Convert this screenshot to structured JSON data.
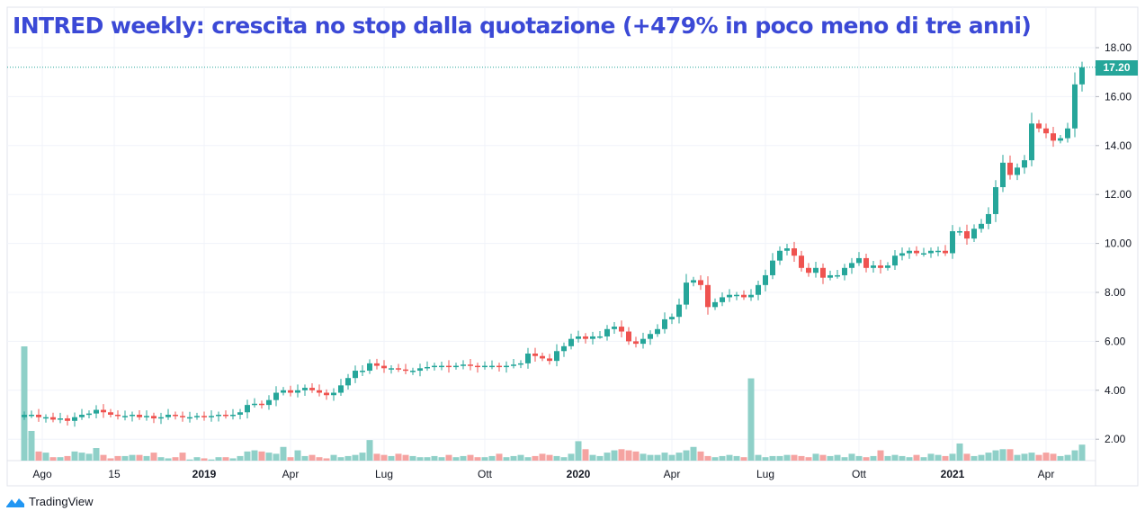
{
  "title": "INTRED weekly: crescita no stop dalla quotazione (+479% in poco meno di tre anni)",
  "brand": "TradingView",
  "colors": {
    "up": "#26a69a",
    "down": "#ef5350",
    "up_vol": "#8fd0c8",
    "down_vol": "#f5a3a1",
    "title": "#3b49d6",
    "grid": "#f0f3fa"
  },
  "chart_data": {
    "type": "candlestick",
    "title": "INTRED weekly: crescita no stop dalla quotazione (+479% in poco meno di tre anni)",
    "last_price": "17.20",
    "ylim": [
      1.2,
      18.7
    ],
    "y_ticks": [
      "2.00",
      "4.00",
      "6.00",
      "8.00",
      "10.00",
      "12.00",
      "14.00",
      "16.00",
      "18.00"
    ],
    "x_ticks": [
      {
        "label": "Ago",
        "index": 2.5
      },
      {
        "label": "15",
        "index": 12.5
      },
      {
        "label": "2019",
        "index": 25
      },
      {
        "label": "Apr",
        "index": 37
      },
      {
        "label": "Lug",
        "index": 50
      },
      {
        "label": "Ott",
        "index": 64
      },
      {
        "label": "2020",
        "index": 77
      },
      {
        "label": "Apr",
        "index": 90
      },
      {
        "label": "Lug",
        "index": 103
      },
      {
        "label": "Ott",
        "index": 116
      },
      {
        "label": "2021",
        "index": 129
      },
      {
        "label": "Apr",
        "index": 142
      }
    ],
    "closes": [
      3.0,
      3.0,
      2.9,
      2.9,
      2.8,
      2.85,
      2.75,
      2.9,
      3.0,
      3.05,
      3.2,
      3.1,
      3.0,
      2.95,
      2.95,
      3.0,
      2.9,
      2.95,
      2.85,
      2.9,
      3.0,
      2.95,
      2.9,
      2.9,
      2.95,
      2.9,
      2.95,
      3.0,
      2.95,
      3.0,
      3.1,
      3.4,
      3.45,
      3.4,
      3.6,
      3.9,
      4.0,
      3.9,
      4.0,
      4.1,
      4.0,
      3.9,
      3.8,
      3.9,
      4.2,
      4.5,
      4.8,
      4.8,
      5.1,
      5.0,
      4.9,
      4.9,
      4.85,
      4.8,
      4.8,
      4.9,
      4.95,
      5.0,
      5.0,
      4.95,
      5.0,
      5.05,
      5.0,
      4.95,
      5.0,
      5.0,
      4.95,
      5.0,
      5.05,
      5.1,
      5.5,
      5.4,
      5.3,
      5.2,
      5.6,
      5.8,
      6.1,
      6.2,
      6.1,
      6.2,
      6.2,
      6.5,
      6.6,
      6.4,
      6.0,
      5.9,
      6.1,
      6.3,
      6.5,
      6.9,
      7.0,
      7.5,
      8.4,
      8.5,
      8.3,
      7.4,
      7.6,
      7.8,
      7.9,
      7.9,
      7.8,
      7.9,
      8.3,
      8.7,
      9.3,
      9.7,
      9.8,
      9.5,
      9.0,
      8.8,
      9.0,
      8.6,
      8.7,
      8.7,
      9.0,
      9.2,
      9.4,
      9.0,
      9.1,
      9.0,
      9.1,
      9.5,
      9.6,
      9.7,
      9.6,
      9.6,
      9.7,
      9.7,
      9.6,
      10.5,
      10.5,
      10.2,
      10.6,
      10.8,
      11.2,
      12.3,
      13.3,
      12.8,
      13.1,
      13.4,
      14.9,
      14.7,
      14.5,
      14.2,
      14.3,
      14.7,
      16.5,
      17.2
    ],
    "first_open": 2.9,
    "volume_relative": [
      100,
      26,
      8,
      7,
      3,
      3,
      4,
      8,
      7,
      6,
      11,
      5,
      2,
      4,
      4,
      5,
      5,
      4,
      7,
      3,
      2,
      3,
      7,
      1,
      3,
      2,
      1,
      3,
      3,
      2,
      4,
      8,
      9,
      8,
      7,
      6,
      12,
      3,
      9,
      4,
      5,
      3,
      2,
      5,
      3,
      4,
      5,
      7,
      18,
      6,
      5,
      4,
      6,
      5,
      4,
      3,
      3,
      4,
      3,
      5,
      3,
      4,
      5,
      3,
      3,
      4,
      6,
      3,
      4,
      5,
      3,
      4,
      6,
      5,
      4,
      3,
      6,
      17,
      10,
      5,
      4,
      7,
      9,
      10,
      9,
      8,
      6,
      5,
      5,
      7,
      5,
      7,
      9,
      12,
      8,
      4,
      3,
      4,
      5,
      4,
      3,
      72,
      5,
      3,
      4,
      4,
      5,
      5,
      4,
      3,
      6,
      5,
      4,
      5,
      3,
      6,
      4,
      3,
      4,
      9,
      4,
      5,
      4,
      3,
      5,
      3,
      6,
      5,
      4,
      6,
      15,
      6,
      4,
      5,
      7,
      9,
      10,
      10,
      5,
      6,
      7,
      5,
      7,
      6,
      4,
      5,
      9,
      14
    ]
  }
}
